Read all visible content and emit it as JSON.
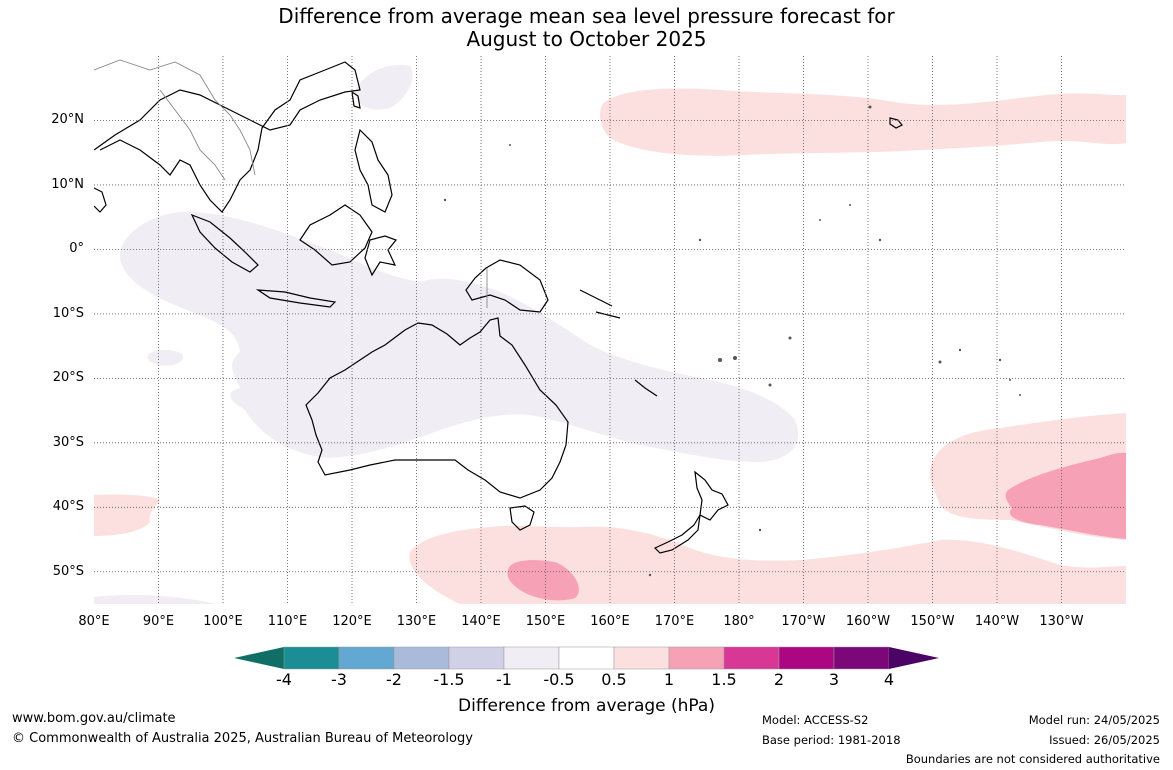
{
  "title": {
    "line1": "Difference from average mean sea level pressure forecast for",
    "line2": "August to October 2025"
  },
  "map": {
    "lat_labels": [
      "20°N",
      "10°N",
      "0°",
      "10°S",
      "20°S",
      "30°S",
      "40°S",
      "50°S"
    ],
    "lon_labels": [
      "80°E",
      "90°E",
      "100°E",
      "110°E",
      "120°E",
      "130°E",
      "140°E",
      "150°E",
      "160°E",
      "170°E",
      "180°",
      "170°W",
      "160°W",
      "150°W",
      "140°W",
      "130°W"
    ],
    "extent": {
      "lon_min": 80,
      "lon_max": 240,
      "lat_min": -55,
      "lat_max": 30
    },
    "anomaly_regions": [
      {
        "category": "-0.5 to 0.5 (weak negative)",
        "color": "#f1edf4",
        "location": "Indian Ocean, Indonesia, Australia, Coral Sea"
      },
      {
        "category": "0.5 to 1",
        "color": "#fbe0df",
        "location": "North Pacific near Hawaii"
      },
      {
        "category": "0.5 to 1",
        "color": "#fbe0df",
        "location": "Southern Ocean south of Australia and Tasman Sea"
      },
      {
        "category": "0.5 to 1",
        "color": "#fbe0df",
        "location": "South Pacific near 35°S 140°W"
      },
      {
        "category": "0.5 to 1",
        "color": "#fbe0df",
        "location": "Indian Ocean near 40°S 80°E"
      },
      {
        "category": "1 to 1.5",
        "color": "#f7a1b6",
        "location": "South of Tasmania"
      },
      {
        "category": "1 to 1.5",
        "color": "#f7a1b6",
        "location": "South Pacific near 37°S 130°W"
      }
    ]
  },
  "colorbar": {
    "ticks": [
      "-4",
      "-3",
      "-2",
      "-1.5",
      "-1",
      "-0.5",
      "0.5",
      "1",
      "1.5",
      "2",
      "3",
      "4"
    ],
    "colors": [
      "#0f6f66",
      "#1b8e95",
      "#63a8d2",
      "#a9badb",
      "#d0d0e6",
      "#f1edf4",
      "#ffffff",
      "#fbe0df",
      "#f7a1b6",
      "#d93795",
      "#ad0683",
      "#7b0778",
      "#4b0465"
    ],
    "label": "Difference from average (hPa)"
  },
  "footer": {
    "website": "www.bom.gov.au/climate",
    "copyright": "© Commonwealth of Australia 2025, Australian Bureau of Meteorology",
    "model": "Model: ACCESS-S2",
    "base_period": "Base period: 1981-2018",
    "model_run": "Model run: 24/05/2025",
    "issued": "Issued: 26/05/2025",
    "disclaimer": "Boundaries are not considered authoritative"
  }
}
